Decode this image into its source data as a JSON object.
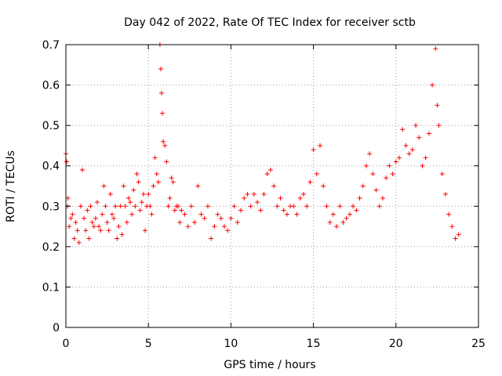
{
  "chart_data": {
    "type": "scatter",
    "title": "Day 042 of 2022, Rate Of TEC Index for receiver sctb",
    "xlabel": "GPS time / hours",
    "ylabel": "ROTI / TECUs",
    "xlim": [
      0,
      25
    ],
    "ylim": [
      0,
      0.7
    ],
    "xticks": [
      0,
      5,
      10,
      15,
      20,
      25
    ],
    "yticks": [
      0,
      0.1,
      0.2,
      0.3,
      0.4,
      0.5,
      0.6,
      0.7
    ],
    "xtick_labels": [
      "0",
      "5",
      "10",
      "15",
      "20",
      "25"
    ],
    "ytick_labels": [
      "0",
      "0.1",
      "0.2",
      "0.3",
      "0.4",
      "0.5",
      "0.6",
      "0.7"
    ],
    "grid": true,
    "marker": "+",
    "color": "#ff0000",
    "note_points": "Dense scatter; representative sample of points read from the plot",
    "series": [
      {
        "x": [
          0.0,
          0.05,
          0.1,
          0.12,
          0.2,
          0.3,
          0.4,
          0.5,
          0.6,
          0.7,
          0.8,
          0.9,
          1.0,
          1.1,
          1.2,
          1.3,
          1.4,
          1.5,
          1.6,
          1.7,
          1.8,
          1.9,
          2.0,
          2.1,
          2.2,
          2.3,
          2.4,
          2.5,
          2.6,
          2.7,
          2.8,
          2.9,
          3.0,
          3.1,
          3.2,
          3.3,
          3.4,
          3.5,
          3.6,
          3.7,
          3.8,
          3.9,
          4.0,
          4.1,
          4.2,
          4.3,
          4.4,
          4.5,
          4.6,
          4.7,
          4.8,
          4.9,
          5.0,
          5.1,
          5.2,
          5.3,
          5.4,
          5.5,
          5.6,
          5.7,
          5.75,
          5.8,
          5.85,
          5.9,
          6.0,
          6.1,
          6.2,
          6.3,
          6.4,
          6.5,
          6.6,
          6.7,
          6.8,
          6.9,
          7.0,
          7.2,
          7.4,
          7.6,
          7.8,
          8.0,
          8.2,
          8.4,
          8.6,
          8.8,
          9.0,
          9.2,
          9.4,
          9.6,
          9.8,
          10.0,
          10.2,
          10.4,
          10.6,
          10.8,
          11.0,
          11.2,
          11.4,
          11.6,
          11.8,
          12.0,
          12.2,
          12.4,
          12.6,
          12.8,
          13.0,
          13.2,
          13.4,
          13.6,
          13.8,
          14.0,
          14.2,
          14.4,
          14.6,
          14.8,
          15.0,
          15.2,
          15.4,
          15.6,
          15.8,
          16.0,
          16.2,
          16.4,
          16.6,
          16.8,
          17.0,
          17.2,
          17.4,
          17.6,
          17.8,
          18.0,
          18.2,
          18.4,
          18.6,
          18.8,
          19.0,
          19.2,
          19.4,
          19.6,
          19.8,
          20.0,
          20.2,
          20.4,
          20.6,
          20.8,
          21.0,
          21.2,
          21.4,
          21.6,
          21.8,
          22.0,
          22.2,
          22.4,
          22.5,
          22.6,
          22.8,
          23.0,
          23.2,
          23.4,
          23.6,
          23.8
        ],
        "y": [
          0.43,
          0.41,
          0.3,
          0.32,
          0.25,
          0.27,
          0.28,
          0.22,
          0.26,
          0.24,
          0.21,
          0.3,
          0.39,
          0.27,
          0.24,
          0.29,
          0.22,
          0.3,
          0.26,
          0.25,
          0.27,
          0.31,
          0.25,
          0.24,
          0.28,
          0.35,
          0.3,
          0.26,
          0.24,
          0.33,
          0.28,
          0.27,
          0.3,
          0.22,
          0.25,
          0.3,
          0.23,
          0.35,
          0.3,
          0.26,
          0.32,
          0.31,
          0.28,
          0.34,
          0.3,
          0.38,
          0.36,
          0.29,
          0.31,
          0.33,
          0.24,
          0.3,
          0.33,
          0.3,
          0.28,
          0.35,
          0.42,
          0.38,
          0.36,
          0.7,
          0.64,
          0.58,
          0.53,
          0.46,
          0.45,
          0.41,
          0.3,
          0.32,
          0.37,
          0.36,
          0.29,
          0.3,
          0.3,
          0.26,
          0.29,
          0.28,
          0.25,
          0.3,
          0.26,
          0.35,
          0.28,
          0.27,
          0.3,
          0.22,
          0.25,
          0.28,
          0.27,
          0.25,
          0.24,
          0.27,
          0.3,
          0.26,
          0.29,
          0.32,
          0.33,
          0.3,
          0.33,
          0.31,
          0.29,
          0.33,
          0.38,
          0.39,
          0.35,
          0.3,
          0.32,
          0.29,
          0.28,
          0.3,
          0.3,
          0.28,
          0.32,
          0.33,
          0.3,
          0.36,
          0.44,
          0.38,
          0.45,
          0.35,
          0.3,
          0.26,
          0.28,
          0.25,
          0.3,
          0.26,
          0.27,
          0.28,
          0.3,
          0.29,
          0.32,
          0.35,
          0.4,
          0.43,
          0.38,
          0.34,
          0.3,
          0.32,
          0.37,
          0.4,
          0.38,
          0.41,
          0.42,
          0.49,
          0.45,
          0.43,
          0.44,
          0.5,
          0.47,
          0.4,
          0.42,
          0.48,
          0.6,
          0.69,
          0.55,
          0.5,
          0.38,
          0.33,
          0.28,
          0.25,
          0.22,
          0.23
        ]
      }
    ]
  }
}
